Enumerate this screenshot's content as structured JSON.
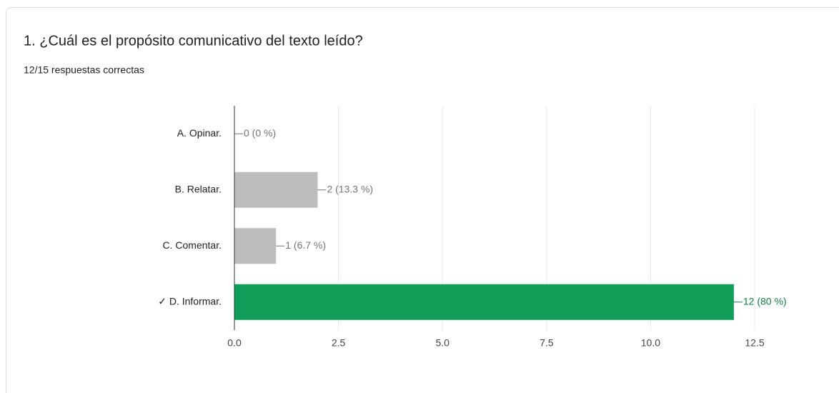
{
  "chart_data": {
    "type": "hbar",
    "title": "1. ¿Cuál es el propósito comunicativo del texto leído?",
    "subtitle": "12/15 respuestas correctas",
    "categories": [
      "A. Opinar.",
      "B. Relatar.",
      "C. Comentar.",
      "✓ D. Informar."
    ],
    "values": [
      0,
      2,
      1,
      12
    ],
    "value_labels": [
      "0 (0 %)",
      "2 (13.3 %)",
      "1 (6.7 %)",
      "12 (80 %)"
    ],
    "colors": [
      "#bdbdbd",
      "#bdbdbd",
      "#bdbdbd",
      "#0f9d58"
    ],
    "label_colors": [
      "#757575",
      "#757575",
      "#757575",
      "#0b8043"
    ],
    "xlim": [
      0,
      12.5
    ],
    "xticks": [
      {
        "value": 0,
        "label": "0.0"
      },
      2.5,
      {
        "value": 5,
        "label": "5.0"
      },
      7.5,
      {
        "value": 10,
        "label": "10.0"
      },
      12.5
    ],
    "grid": true
  }
}
